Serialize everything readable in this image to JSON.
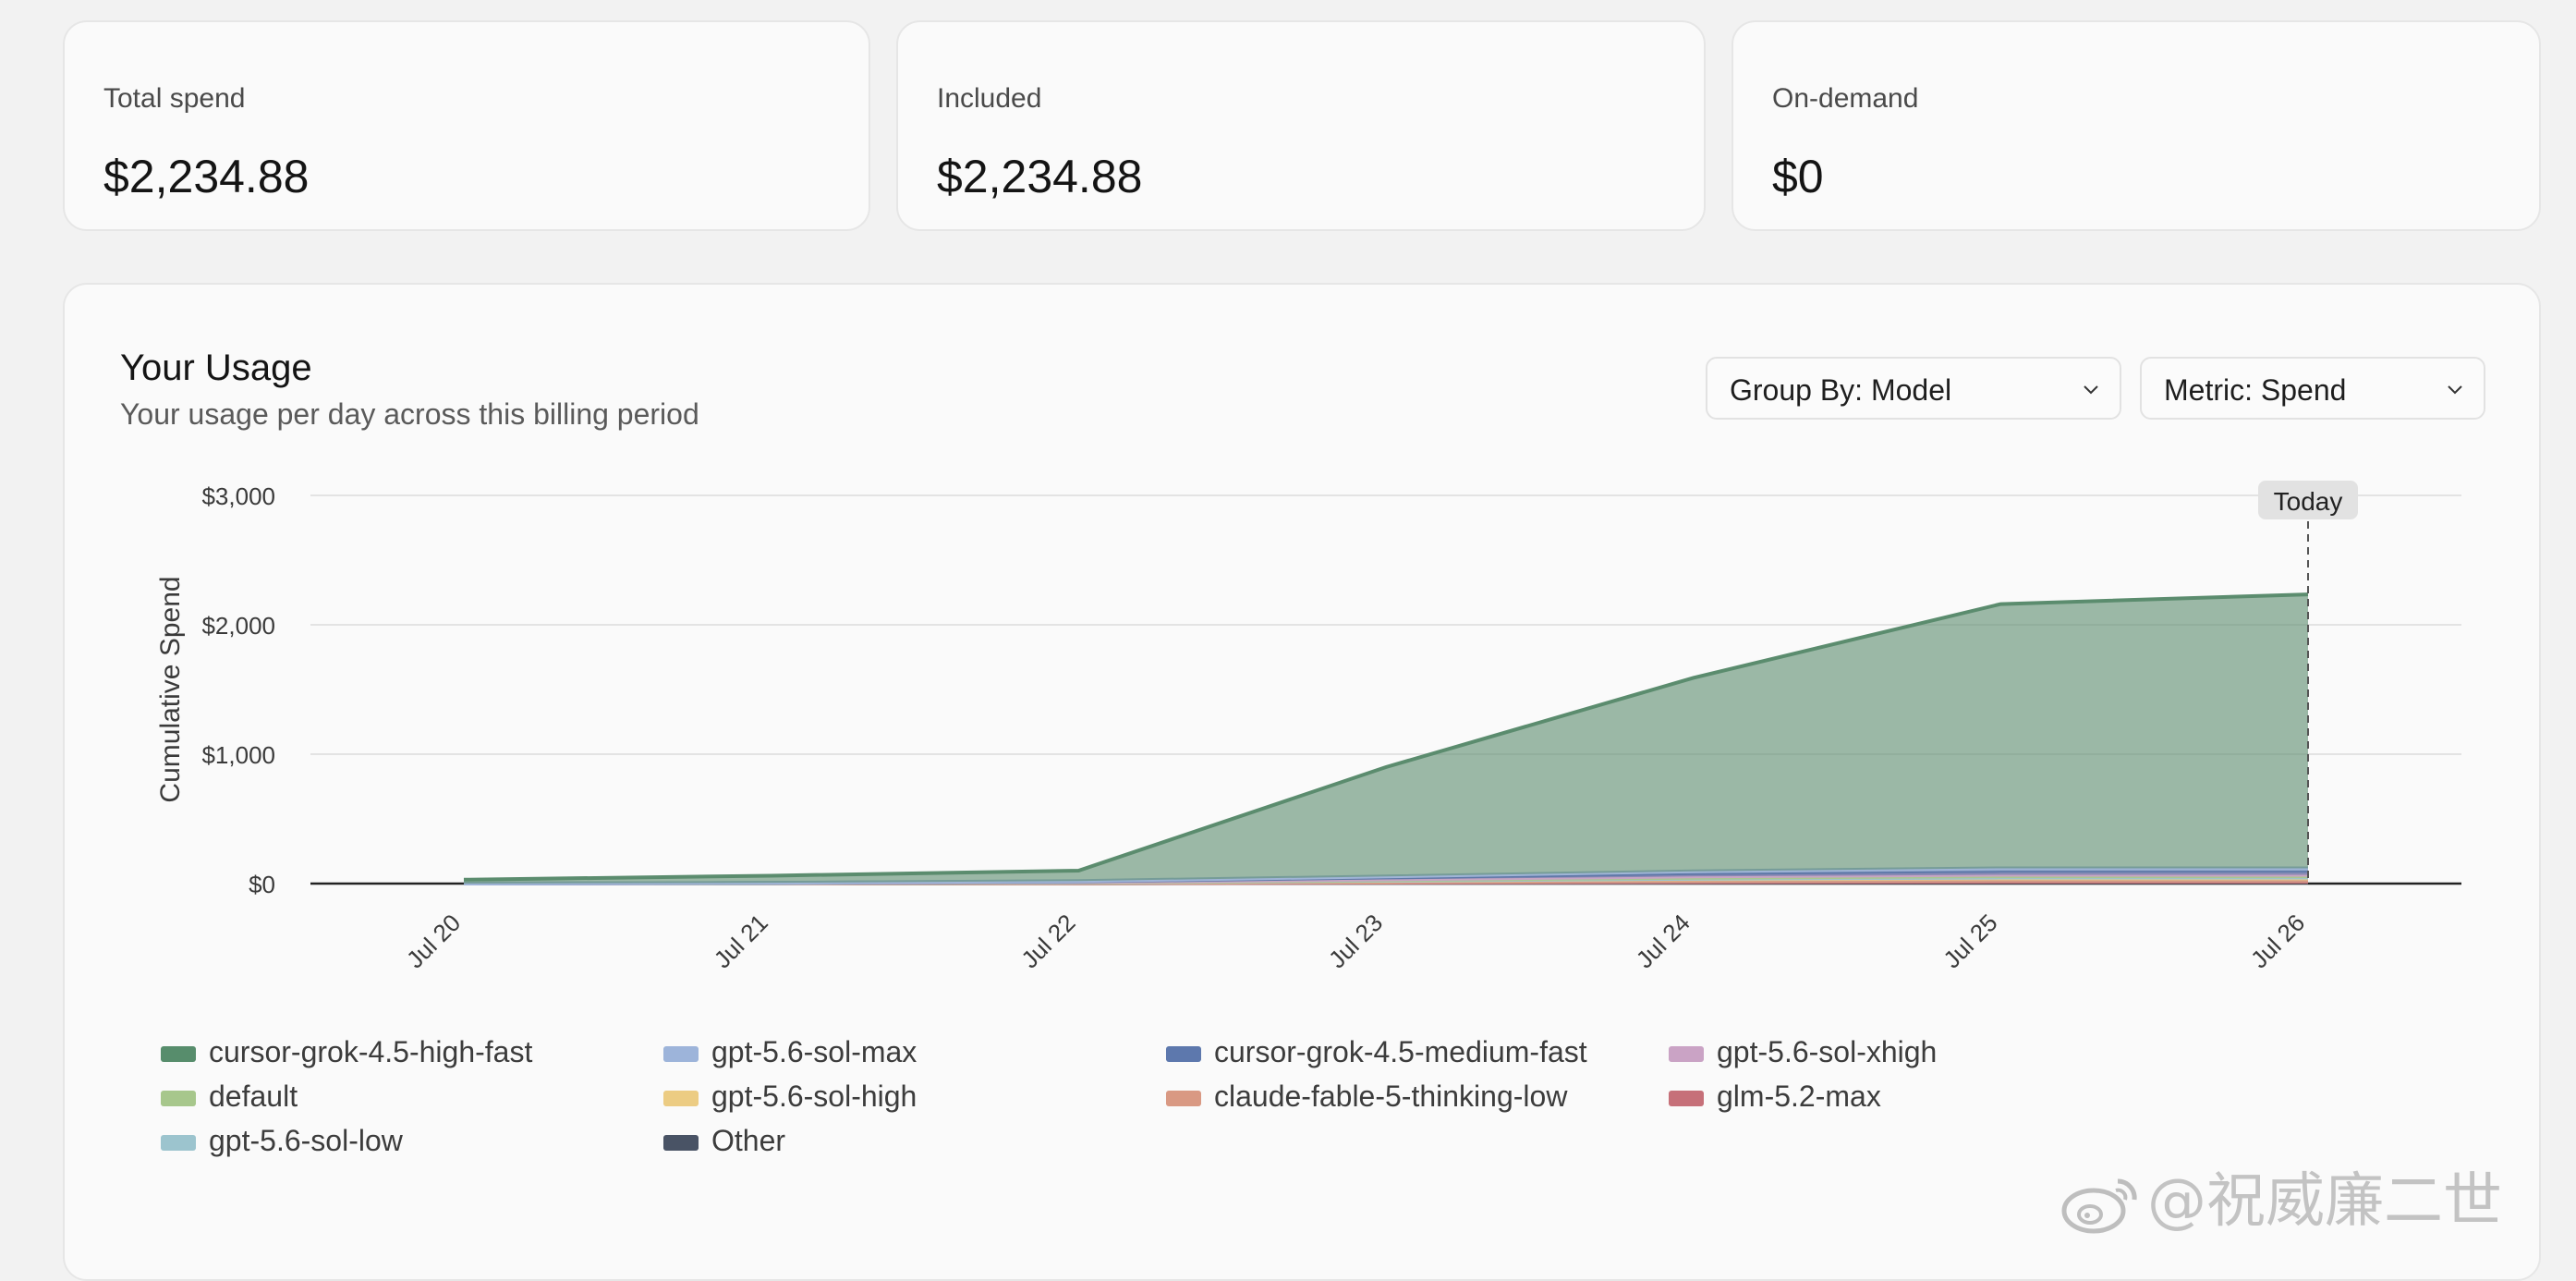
{
  "stats": [
    {
      "label": "Total spend",
      "value": "$2,234.88"
    },
    {
      "label": "Included",
      "value": "$2,234.88"
    },
    {
      "label": "On-demand",
      "value": "$0"
    }
  ],
  "usage": {
    "title": "Your Usage",
    "subtitle": "Your usage per day across this billing period",
    "group_by": "Group By: Model",
    "metric": "Metric: Spend",
    "today_label": "Today"
  },
  "chart_data": {
    "type": "area",
    "stacked": true,
    "ylabel": "Cumulative Spend",
    "xlabel": "",
    "ylim": [
      0,
      3000
    ],
    "y_ticks": [
      0,
      1000,
      2000,
      3000
    ],
    "y_tick_labels": [
      "$0",
      "$1,000",
      "$2,000",
      "$3,000"
    ],
    "categories": [
      "Jul 20",
      "Jul 21",
      "Jul 22",
      "Jul 23",
      "Jul 24",
      "Jul 25",
      "Jul 26"
    ],
    "today_marker": "Jul 26",
    "legend_position": "bottom",
    "grid": true,
    "series": [
      {
        "name": "Other",
        "color": "#4a5363",
        "values": [
          0,
          0,
          2,
          5,
          8,
          10,
          10
        ]
      },
      {
        "name": "glm-5.2-max",
        "color": "#c0727a",
        "values": [
          0,
          0,
          0,
          2,
          3,
          3,
          3
        ]
      },
      {
        "name": "claude-fable-5-thinking-low",
        "color": "#d49a86",
        "values": [
          0,
          1,
          2,
          5,
          8,
          10,
          10
        ]
      },
      {
        "name": "gpt-5.6-sol-high",
        "color": "#e9cc8a",
        "values": [
          0,
          1,
          3,
          8,
          15,
          20,
          20
        ]
      },
      {
        "name": "gpt-5.6-sol-low",
        "color": "#9fc3cc",
        "values": [
          0,
          0,
          1,
          2,
          3,
          3,
          3
        ]
      },
      {
        "name": "default",
        "color": "#a9c690",
        "values": [
          0,
          0,
          2,
          5,
          8,
          10,
          10
        ]
      },
      {
        "name": "gpt-5.6-sol-xhigh",
        "color": "#c7a4c3",
        "values": [
          0,
          1,
          2,
          5,
          10,
          12,
          12
        ]
      },
      {
        "name": "cursor-grok-4.5-medium-fast",
        "color": "#5f78a8",
        "values": [
          0,
          2,
          5,
          15,
          25,
          30,
          30
        ]
      },
      {
        "name": "gpt-5.6-sol-max",
        "color": "#9fb4d6",
        "values": [
          0,
          1,
          3,
          8,
          15,
          20,
          20
        ]
      },
      {
        "name": "cursor-grok-4.5-high-fast",
        "color": "#5b8c6e",
        "values": [
          30,
          55,
          80,
          845,
          1495,
          2042,
          2117
        ]
      }
    ]
  },
  "legend": [
    {
      "name": "cursor-grok-4.5-high-fast",
      "color": "#5b8c6e"
    },
    {
      "name": "gpt-5.6-sol-max",
      "color": "#9fb4d6"
    },
    {
      "name": "cursor-grok-4.5-medium-fast",
      "color": "#5f78a8"
    },
    {
      "name": "gpt-5.6-sol-xhigh",
      "color": "#c7a4c3"
    },
    {
      "name": "default",
      "color": "#a9c690"
    },
    {
      "name": "gpt-5.6-sol-high",
      "color": "#e9cc8a"
    },
    {
      "name": "claude-fable-5-thinking-low",
      "color": "#d49a86"
    },
    {
      "name": "glm-5.2-max",
      "color": "#c0727a"
    },
    {
      "name": "gpt-5.6-sol-low",
      "color": "#9fc3cc"
    },
    {
      "name": "Other",
      "color": "#4a5363"
    }
  ],
  "watermark": "@祝威廉二世"
}
